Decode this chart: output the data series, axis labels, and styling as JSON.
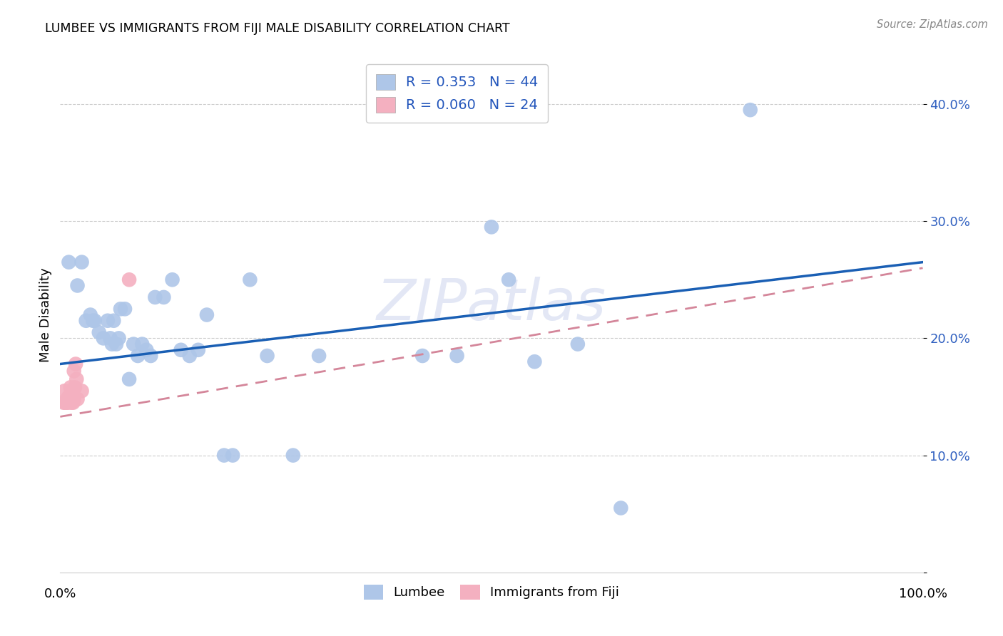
{
  "title": "LUMBEE VS IMMIGRANTS FROM FIJI MALE DISABILITY CORRELATION CHART",
  "source": "Source: ZipAtlas.com",
  "ylabel": "Male Disability",
  "xlim": [
    0.0,
    1.0
  ],
  "ylim": [
    0.0,
    0.44
  ],
  "lumbee_R": 0.353,
  "lumbee_N": 44,
  "fiji_R": 0.06,
  "fiji_N": 24,
  "lumbee_color": "#aec6e8",
  "fiji_color": "#f4b0c0",
  "lumbee_line_color": "#1a5fb4",
  "fiji_line_color": "#d4869a",
  "watermark_text": "ZIPatlas",
  "lumbee_x": [
    0.01,
    0.02,
    0.025,
    0.03,
    0.035,
    0.038,
    0.04,
    0.045,
    0.05,
    0.055,
    0.058,
    0.06,
    0.062,
    0.065,
    0.068,
    0.07,
    0.075,
    0.08,
    0.085,
    0.09,
    0.095,
    0.1,
    0.105,
    0.11,
    0.12,
    0.13,
    0.14,
    0.15,
    0.16,
    0.17,
    0.19,
    0.2,
    0.22,
    0.24,
    0.27,
    0.3,
    0.42,
    0.46,
    0.5,
    0.52,
    0.55,
    0.6,
    0.65,
    0.8
  ],
  "lumbee_y": [
    0.265,
    0.245,
    0.265,
    0.215,
    0.22,
    0.215,
    0.215,
    0.205,
    0.2,
    0.215,
    0.2,
    0.195,
    0.215,
    0.195,
    0.2,
    0.225,
    0.225,
    0.165,
    0.195,
    0.185,
    0.195,
    0.19,
    0.185,
    0.235,
    0.235,
    0.25,
    0.19,
    0.185,
    0.19,
    0.22,
    0.1,
    0.1,
    0.25,
    0.185,
    0.1,
    0.185,
    0.185,
    0.185,
    0.295,
    0.25,
    0.18,
    0.195,
    0.055,
    0.395
  ],
  "fiji_x": [
    0.004,
    0.005,
    0.006,
    0.007,
    0.008,
    0.009,
    0.01,
    0.01,
    0.011,
    0.012,
    0.012,
    0.013,
    0.014,
    0.015,
    0.015,
    0.015,
    0.016,
    0.016,
    0.017,
    0.018,
    0.019,
    0.02,
    0.025,
    0.08
  ],
  "fiji_y": [
    0.145,
    0.155,
    0.145,
    0.145,
    0.148,
    0.145,
    0.148,
    0.15,
    0.148,
    0.148,
    0.158,
    0.145,
    0.148,
    0.148,
    0.148,
    0.145,
    0.148,
    0.172,
    0.158,
    0.178,
    0.165,
    0.148,
    0.155,
    0.25
  ],
  "lumbee_line": [
    0.0,
    0.178,
    1.0,
    0.265
  ],
  "fiji_line": [
    0.0,
    0.133,
    1.0,
    0.26
  ],
  "yticks": [
    0.0,
    0.1,
    0.2,
    0.3,
    0.4
  ],
  "ytick_labels": [
    "",
    "10.0%",
    "20.0%",
    "30.0%",
    "40.0%"
  ]
}
